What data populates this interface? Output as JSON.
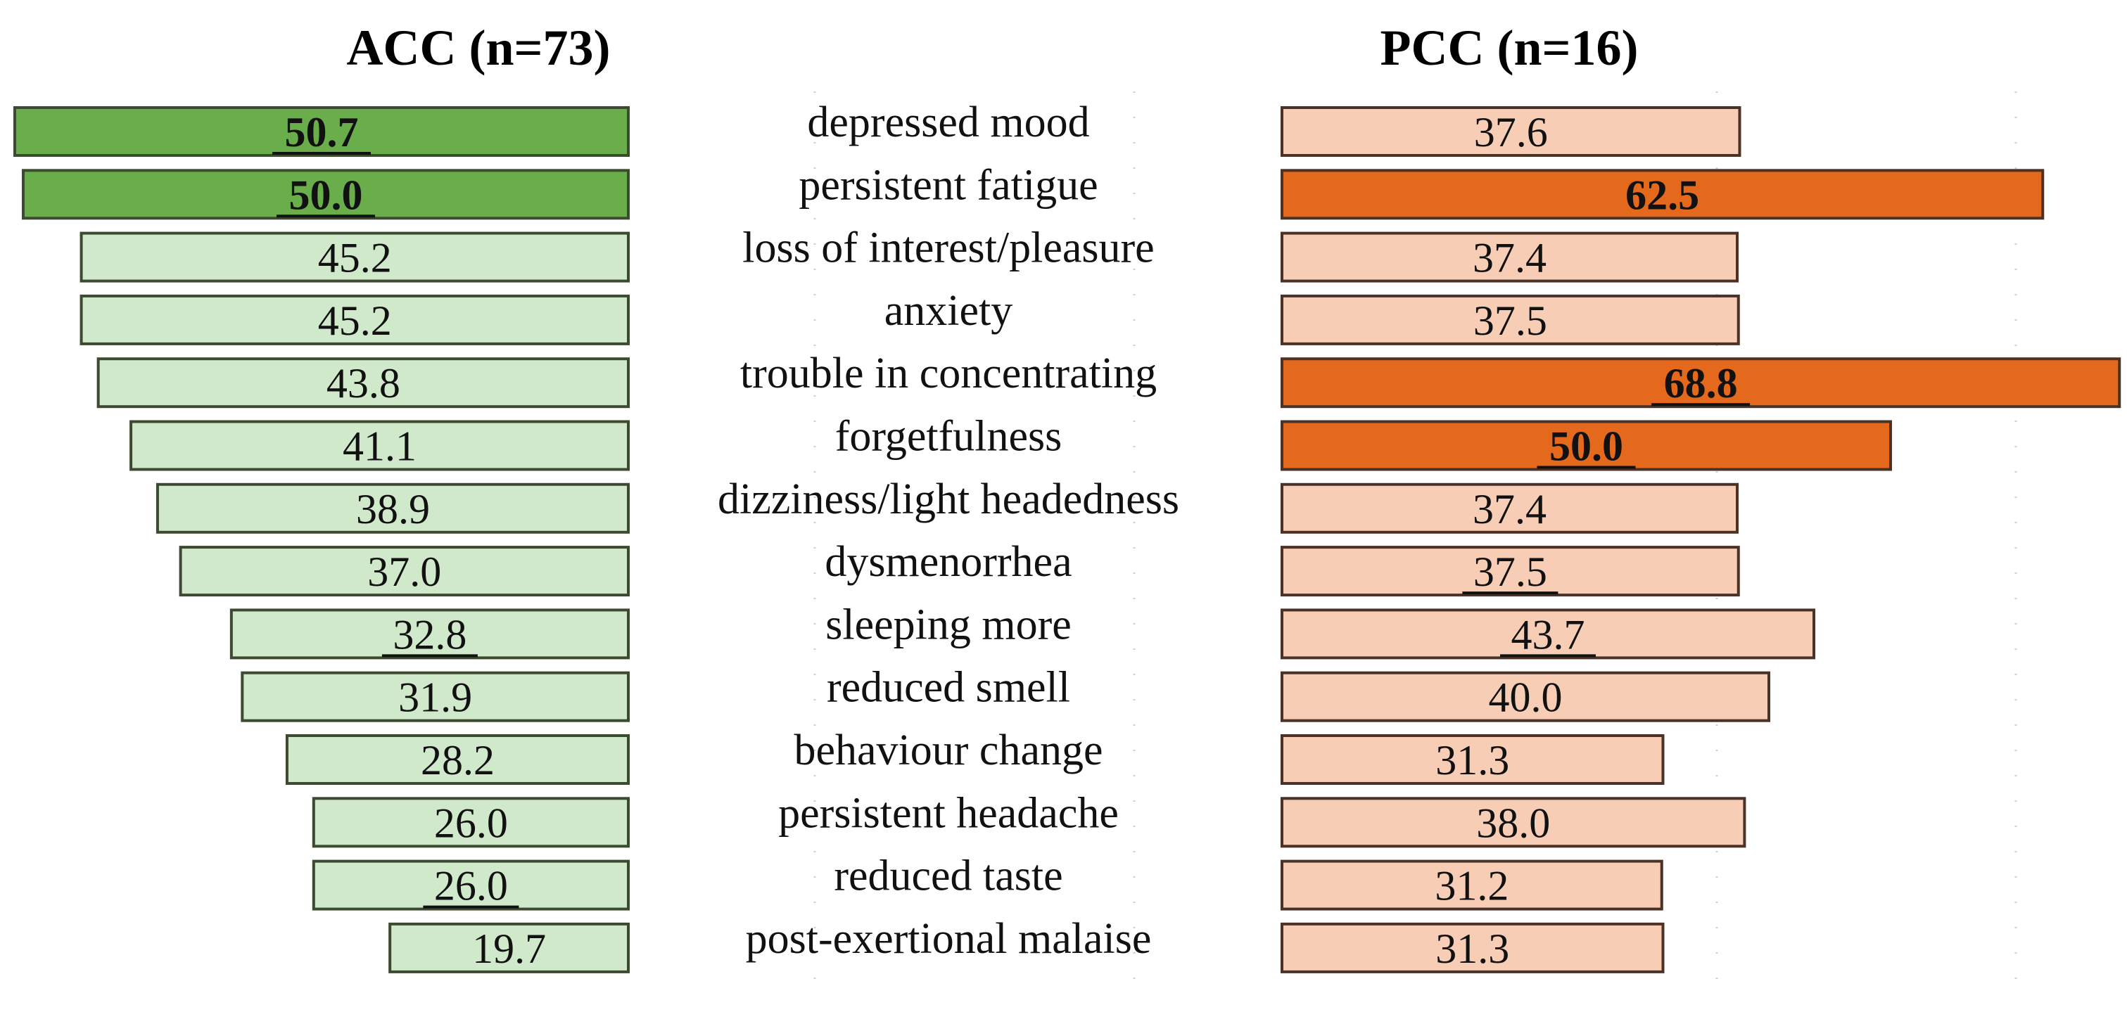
{
  "chart_data": {
    "type": "bar",
    "orientation": "horizontal-butterfly",
    "categories": [
      "depressed mood",
      "persistent fatigue",
      "loss of interest/pleasure",
      "anxiety",
      "trouble in concentrating",
      "forgetfulness",
      "dizziness/light headedness",
      "dysmenorrhea",
      "sleeping more",
      "reduced smell",
      "behaviour change",
      "persistent headache",
      "reduced taste",
      "post-exertional malaise"
    ],
    "series": [
      {
        "name": "ACC",
        "title": "ACC (n=73)",
        "direction": "left",
        "values": [
          50.7,
          50.0,
          45.2,
          45.2,
          43.8,
          41.1,
          38.9,
          37.0,
          32.8,
          31.9,
          28.2,
          26.0,
          26.0,
          19.7
        ],
        "labels": [
          "50.7",
          "50.0",
          "45.2",
          "45.2",
          "43.8",
          "41.1",
          "38.9",
          "37.0",
          "32.8",
          "31.9",
          "28.2",
          "26.0",
          "26.0",
          "19.7"
        ],
        "highlighted": [
          true,
          true,
          false,
          false,
          false,
          false,
          false,
          false,
          false,
          false,
          false,
          false,
          false,
          false
        ],
        "underlined": [
          true,
          true,
          false,
          false,
          false,
          false,
          false,
          false,
          true,
          false,
          false,
          false,
          true,
          false
        ],
        "color": "#d1e9cb",
        "highlight_color": "#6aad4b",
        "edge_color": "#3c4a30"
      },
      {
        "name": "PCC",
        "title": "PCC (n=16)",
        "direction": "right",
        "values": [
          37.6,
          62.5,
          37.4,
          37.5,
          68.8,
          50.0,
          37.4,
          37.5,
          43.7,
          40.0,
          31.3,
          38.0,
          31.2,
          31.3
        ],
        "labels": [
          "37.6",
          "62.5",
          "37.4",
          "37.5",
          "68.8",
          "50.0",
          "37.4",
          "37.5",
          "43.7",
          "40.0",
          "31.3",
          "38.0",
          "31.2",
          "31.3"
        ],
        "highlighted": [
          false,
          true,
          false,
          false,
          true,
          true,
          false,
          false,
          false,
          false,
          false,
          false,
          false,
          false
        ],
        "underlined": [
          false,
          false,
          false,
          false,
          true,
          true,
          false,
          true,
          true,
          false,
          false,
          false,
          false,
          false
        ],
        "color": "#f8cdb5",
        "highlight_color": "#e4691c",
        "edge_color": "#4a3226"
      }
    ],
    "xlim": [
      0,
      70
    ],
    "grid": true
  }
}
